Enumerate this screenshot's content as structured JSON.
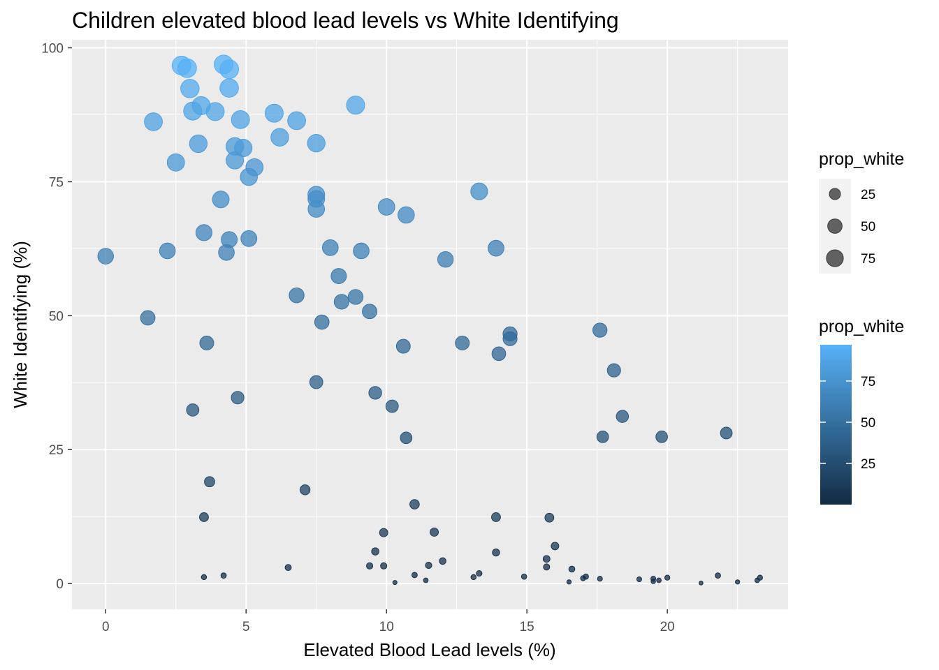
{
  "chart_data": {
    "type": "scatter",
    "title": "Children elevated blood lead levels vs White Identifying",
    "xlabel": "Elevated Blood Lead levels (%)",
    "ylabel": "White Identifying (%)",
    "xlim": [
      -1.2,
      24.3
    ],
    "ylim": [
      -4.8,
      101.5
    ],
    "x_ticks": [
      0,
      5,
      10,
      15,
      20
    ],
    "y_ticks": [
      0,
      25,
      50,
      75,
      100
    ],
    "grid": true,
    "background": "#ebebeb",
    "size_variable": "prop_white",
    "color_variable": "prop_white",
    "color_low": "#132b43",
    "color_high": "#56b1f7",
    "legend": {
      "position": "right",
      "size_title": "prop_white",
      "size_breaks": [
        25,
        50,
        75
      ],
      "color_title": "prop_white",
      "color_breaks": [
        25,
        50,
        75
      ]
    },
    "points": [
      {
        "x": 2.7,
        "y": 96.7
      },
      {
        "x": 2.9,
        "y": 96.2
      },
      {
        "x": 4.2,
        "y": 96.9
      },
      {
        "x": 4.4,
        "y": 96.0
      },
      {
        "x": 3.0,
        "y": 92.4
      },
      {
        "x": 4.4,
        "y": 92.5
      },
      {
        "x": 8.9,
        "y": 89.3
      },
      {
        "x": 3.4,
        "y": 89.2
      },
      {
        "x": 3.1,
        "y": 88.2
      },
      {
        "x": 3.9,
        "y": 88.1
      },
      {
        "x": 6.0,
        "y": 87.8
      },
      {
        "x": 4.8,
        "y": 86.6
      },
      {
        "x": 6.8,
        "y": 86.4
      },
      {
        "x": 1.7,
        "y": 86.2
      },
      {
        "x": 6.2,
        "y": 83.3
      },
      {
        "x": 3.3,
        "y": 82.1
      },
      {
        "x": 7.5,
        "y": 82.2
      },
      {
        "x": 4.6,
        "y": 81.6
      },
      {
        "x": 4.9,
        "y": 81.3
      },
      {
        "x": 4.6,
        "y": 79.0
      },
      {
        "x": 2.5,
        "y": 78.6
      },
      {
        "x": 5.3,
        "y": 77.7
      },
      {
        "x": 5.1,
        "y": 75.9
      },
      {
        "x": 13.3,
        "y": 73.2
      },
      {
        "x": 7.5,
        "y": 72.6
      },
      {
        "x": 7.5,
        "y": 71.8
      },
      {
        "x": 4.1,
        "y": 71.7
      },
      {
        "x": 10.0,
        "y": 70.3
      },
      {
        "x": 7.5,
        "y": 69.9
      },
      {
        "x": 10.7,
        "y": 68.8
      },
      {
        "x": 3.5,
        "y": 65.5
      },
      {
        "x": 5.1,
        "y": 64.4
      },
      {
        "x": 4.4,
        "y": 64.2
      },
      {
        "x": 8.0,
        "y": 62.7
      },
      {
        "x": 13.9,
        "y": 62.6
      },
      {
        "x": 2.2,
        "y": 62.1
      },
      {
        "x": 9.1,
        "y": 62.1
      },
      {
        "x": 4.3,
        "y": 61.8
      },
      {
        "x": 0.0,
        "y": 61.1
      },
      {
        "x": 12.1,
        "y": 60.5
      },
      {
        "x": 8.3,
        "y": 57.4
      },
      {
        "x": 6.8,
        "y": 53.8
      },
      {
        "x": 8.9,
        "y": 53.5
      },
      {
        "x": 8.4,
        "y": 52.6
      },
      {
        "x": 9.4,
        "y": 50.8
      },
      {
        "x": 1.5,
        "y": 49.6
      },
      {
        "x": 7.7,
        "y": 48.8
      },
      {
        "x": 17.6,
        "y": 47.3
      },
      {
        "x": 14.4,
        "y": 46.6
      },
      {
        "x": 14.4,
        "y": 45.7
      },
      {
        "x": 12.7,
        "y": 44.9
      },
      {
        "x": 3.6,
        "y": 44.9
      },
      {
        "x": 10.6,
        "y": 44.3
      },
      {
        "x": 14.0,
        "y": 42.9
      },
      {
        "x": 18.1,
        "y": 39.8
      },
      {
        "x": 7.5,
        "y": 37.6
      },
      {
        "x": 9.6,
        "y": 35.6
      },
      {
        "x": 4.7,
        "y": 34.7
      },
      {
        "x": 10.2,
        "y": 33.1
      },
      {
        "x": 3.1,
        "y": 32.4
      },
      {
        "x": 18.4,
        "y": 31.2
      },
      {
        "x": 22.1,
        "y": 28.1
      },
      {
        "x": 17.7,
        "y": 27.4
      },
      {
        "x": 19.8,
        "y": 27.4
      },
      {
        "x": 10.7,
        "y": 27.2
      },
      {
        "x": 3.7,
        "y": 19.0
      },
      {
        "x": 7.1,
        "y": 17.5
      },
      {
        "x": 11.0,
        "y": 14.8
      },
      {
        "x": 3.5,
        "y": 12.4
      },
      {
        "x": 13.9,
        "y": 12.4
      },
      {
        "x": 15.8,
        "y": 12.3
      },
      {
        "x": 9.9,
        "y": 9.5
      },
      {
        "x": 11.7,
        "y": 9.6
      },
      {
        "x": 16.0,
        "y": 7.0
      },
      {
        "x": 9.6,
        "y": 6.0
      },
      {
        "x": 13.9,
        "y": 5.8
      },
      {
        "x": 15.7,
        "y": 4.6
      },
      {
        "x": 12.0,
        "y": 4.2
      },
      {
        "x": 11.5,
        "y": 3.4
      },
      {
        "x": 9.4,
        "y": 3.3
      },
      {
        "x": 9.9,
        "y": 3.3
      },
      {
        "x": 15.7,
        "y": 3.1
      },
      {
        "x": 6.5,
        "y": 3.0
      },
      {
        "x": 16.6,
        "y": 2.7
      },
      {
        "x": 13.3,
        "y": 1.9
      },
      {
        "x": 11.0,
        "y": 1.6
      },
      {
        "x": 21.8,
        "y": 1.5
      },
      {
        "x": 4.2,
        "y": 1.5
      },
      {
        "x": 17.1,
        "y": 1.3
      },
      {
        "x": 14.9,
        "y": 1.3
      },
      {
        "x": 13.1,
        "y": 1.2
      },
      {
        "x": 3.5,
        "y": 1.2
      },
      {
        "x": 20.0,
        "y": 1.1
      },
      {
        "x": 17.0,
        "y": 1.0
      },
      {
        "x": 23.3,
        "y": 1.1
      },
      {
        "x": 17.6,
        "y": 0.9
      },
      {
        "x": 19.5,
        "y": 0.9
      },
      {
        "x": 19.0,
        "y": 0.8
      },
      {
        "x": 19.7,
        "y": 0.6
      },
      {
        "x": 23.2,
        "y": 0.6
      },
      {
        "x": 11.4,
        "y": 0.6
      },
      {
        "x": 19.5,
        "y": 0.4
      },
      {
        "x": 16.5,
        "y": 0.3
      },
      {
        "x": 22.5,
        "y": 0.3
      },
      {
        "x": 10.3,
        "y": 0.2
      },
      {
        "x": 21.2,
        "y": 0.1
      }
    ]
  }
}
